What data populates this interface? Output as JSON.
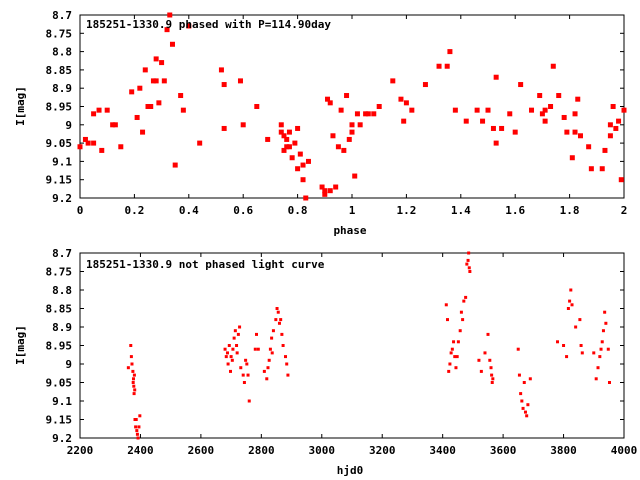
{
  "chart_data": [
    {
      "type": "scatter",
      "title": "185251-1330.9 phased with P=114.90day",
      "xlabel": "phase",
      "ylabel": "I[mag]",
      "xlim": [
        0,
        2
      ],
      "ylim": [
        8.7,
        9.2
      ],
      "y_inverted": true,
      "x_ticks": [
        "0",
        "0.2",
        "0.4",
        "0.6",
        "0.8",
        "1",
        "1.2",
        "1.4",
        "1.6",
        "1.8",
        "2"
      ],
      "y_ticks": [
        "8.7",
        "8.75",
        "8.8",
        "8.85",
        "8.9",
        "8.95",
        "9",
        "9.05",
        "9.1",
        "9.15",
        "9.2"
      ],
      "marker_color": "#ff0000",
      "x": [
        0.0,
        0.02,
        0.03,
        0.05,
        0.05,
        0.07,
        0.08,
        0.1,
        0.12,
        0.13,
        0.15,
        0.19,
        0.21,
        0.22,
        0.23,
        0.24,
        0.25,
        0.26,
        0.27,
        0.28,
        0.28,
        0.29,
        0.3,
        0.31,
        0.32,
        0.33,
        0.34,
        0.35,
        0.37,
        0.38,
        0.4,
        0.44,
        0.52,
        0.53,
        0.53,
        0.59,
        0.6,
        0.65,
        0.69,
        0.74,
        0.74,
        0.75,
        0.75,
        0.76,
        0.76,
        0.77,
        0.77,
        0.78,
        0.79,
        0.8,
        0.8,
        0.81,
        0.82,
        0.82,
        0.83,
        0.84,
        0.89,
        0.9,
        0.9,
        0.91,
        0.92,
        0.92,
        0.93,
        0.94,
        0.95,
        0.96,
        0.97,
        0.98,
        0.99,
        1.0,
        1.0,
        1.01,
        1.02,
        1.03,
        1.05,
        1.06,
        1.08,
        1.1,
        1.15,
        1.18,
        1.19,
        1.2,
        1.22,
        1.27,
        1.32,
        1.35,
        1.36,
        1.38,
        1.42,
        1.46,
        1.48,
        1.5,
        1.52,
        1.53,
        1.53,
        1.55,
        1.58,
        1.6,
        1.62,
        1.66,
        1.69,
        1.7,
        1.71,
        1.71,
        1.73,
        1.74,
        1.76,
        1.78,
        1.79,
        1.81,
        1.82,
        1.82,
        1.83,
        1.84,
        1.87,
        1.88,
        1.92,
        1.93,
        1.95,
        1.95,
        1.96,
        1.97,
        1.98,
        1.99,
        2.0
      ],
      "y": [
        9.06,
        9.04,
        9.05,
        9.05,
        8.97,
        8.96,
        9.07,
        8.96,
        9.0,
        9.0,
        9.06,
        8.91,
        8.98,
        8.9,
        9.02,
        8.85,
        8.95,
        8.95,
        8.88,
        8.82,
        8.88,
        8.94,
        8.83,
        8.88,
        8.74,
        8.7,
        8.78,
        9.11,
        8.92,
        8.96,
        8.73,
        9.05,
        8.85,
        8.89,
        9.01,
        8.88,
        9.0,
        8.95,
        9.04,
        9.0,
        9.02,
        9.07,
        9.03,
        9.04,
        9.06,
        9.06,
        9.02,
        9.09,
        9.05,
        9.01,
        9.12,
        9.08,
        9.15,
        9.11,
        9.2,
        9.1,
        9.17,
        9.19,
        9.18,
        8.93,
        8.94,
        9.18,
        9.03,
        9.17,
        9.06,
        8.96,
        9.07,
        8.92,
        9.04,
        9.0,
        9.02,
        9.14,
        8.97,
        9.0,
        8.97,
        8.97,
        8.97,
        8.95,
        8.88,
        8.93,
        8.99,
        8.94,
        8.96,
        8.89,
        8.84,
        8.84,
        8.8,
        8.96,
        8.99,
        8.96,
        8.99,
        8.96,
        9.01,
        9.05,
        8.87,
        9.01,
        8.97,
        9.02,
        8.89,
        8.96,
        8.92,
        8.97,
        8.96,
        8.99,
        8.95,
        8.84,
        8.92,
        8.98,
        9.02,
        9.09,
        9.02,
        8.97,
        8.93,
        9.03,
        9.06,
        9.12,
        9.12,
        9.07,
        9.03,
        9.0,
        8.95,
        9.01,
        8.99,
        9.15,
        8.96
      ]
    },
    {
      "type": "scatter",
      "title": "185251-1330.9 not phased light curve",
      "xlabel": "hjd0",
      "ylabel": "I[mag]",
      "xlim": [
        2200,
        4000
      ],
      "ylim": [
        8.7,
        9.2
      ],
      "y_inverted": true,
      "x_ticks": [
        "2200",
        "2400",
        "2600",
        "2800",
        "3000",
        "3200",
        "3400",
        "3600",
        "3800",
        "4000"
      ],
      "y_ticks": [
        "8.7",
        "8.75",
        "8.8",
        "8.85",
        "8.9",
        "8.95",
        "9",
        "9.05",
        "9.1",
        "9.15",
        "9.2"
      ],
      "marker_color": "#ff0000",
      "x": [
        2360,
        2368,
        2370,
        2372,
        2375,
        2376,
        2377,
        2378,
        2379,
        2380,
        2381,
        2382,
        2384,
        2386,
        2388,
        2390,
        2392,
        2395,
        2398,
        2680,
        2684,
        2688,
        2690,
        2694,
        2698,
        2700,
        2704,
        2706,
        2710,
        2714,
        2718,
        2720,
        2724,
        2728,
        2732,
        2740,
        2744,
        2748,
        2752,
        2756,
        2760,
        2780,
        2784,
        2790,
        2810,
        2818,
        2822,
        2826,
        2830,
        2834,
        2836,
        2840,
        2848,
        2852,
        2856,
        2860,
        2864,
        2868,
        2872,
        2880,
        2884,
        2888,
        3412,
        3416,
        3420,
        3424,
        3428,
        3432,
        3436,
        3440,
        3444,
        3448,
        3452,
        3458,
        3462,
        3466,
        3470,
        3476,
        3480,
        3484,
        3486,
        3488,
        3490,
        3520,
        3528,
        3540,
        3550,
        3556,
        3560,
        3562,
        3564,
        3566,
        3650,
        3654,
        3658,
        3662,
        3666,
        3670,
        3674,
        3678,
        3682,
        3690,
        3780,
        3800,
        3810,
        3816,
        3820,
        3824,
        3828,
        3840,
        3854,
        3858,
        3862,
        3900,
        3908,
        3914,
        3920,
        3924,
        3928,
        3932,
        3936,
        3940,
        3948,
        3952
      ],
      "y": [
        9.01,
        8.95,
        8.98,
        9.0,
        9.02,
        9.05,
        9.04,
        9.06,
        9.08,
        9.03,
        9.07,
        9.15,
        9.17,
        9.15,
        9.18,
        9.19,
        9.2,
        9.17,
        9.14,
        8.96,
        8.98,
        8.97,
        9.0,
        8.95,
        9.02,
        8.98,
        8.99,
        8.96,
        8.93,
        8.91,
        8.95,
        8.97,
        8.92,
        8.9,
        9.01,
        9.03,
        9.05,
        8.99,
        9.0,
        9.03,
        9.1,
        8.96,
        8.92,
        8.96,
        9.02,
        9.04,
        9.01,
        8.99,
        8.96,
        8.93,
        8.97,
        8.91,
        8.88,
        8.85,
        8.86,
        8.89,
        8.88,
        8.92,
        8.95,
        8.98,
        9.0,
        9.03,
        8.84,
        8.88,
        9.02,
        9.0,
        8.97,
        8.96,
        8.94,
        8.98,
        9.01,
        8.98,
        8.94,
        8.91,
        8.86,
        8.88,
        8.83,
        8.82,
        8.73,
        8.72,
        8.7,
        8.74,
        8.75,
        8.99,
        9.02,
        8.97,
        8.92,
        8.99,
        9.01,
        9.03,
        9.05,
        9.04,
        8.96,
        9.03,
        9.08,
        9.1,
        9.12,
        9.05,
        9.13,
        9.14,
        9.11,
        9.04,
        8.94,
        8.95,
        8.98,
        8.85,
        8.83,
        8.8,
        8.84,
        8.9,
        8.88,
        8.95,
        8.97,
        8.97,
        9.04,
        9.01,
        8.98,
        8.96,
        8.94,
        8.91,
        8.86,
        8.89,
        8.96,
        9.05
      ]
    }
  ]
}
